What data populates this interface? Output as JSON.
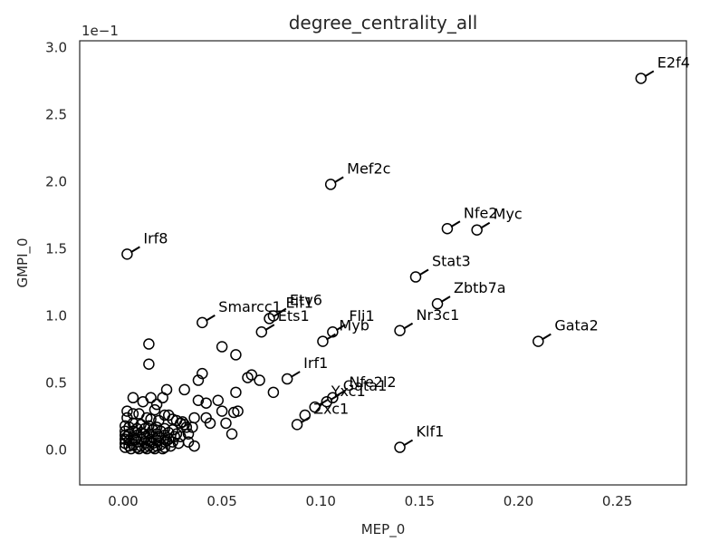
{
  "chart_data": {
    "type": "scatter",
    "title": "degree_centrality_all",
    "xlabel": "MEP_0",
    "ylabel": "GMPI_0",
    "y_multiplier": "1e−1",
    "xlim": [
      -0.022,
      0.285
    ],
    "ylim": [
      -0.26,
      3.05
    ],
    "xticks": [
      0.0,
      0.05,
      0.1,
      0.15,
      0.2,
      0.25
    ],
    "xtick_labels": [
      "0.00",
      "0.05",
      "0.10",
      "0.15",
      "0.20",
      "0.25"
    ],
    "yticks": [
      0.0,
      0.5,
      1.0,
      1.5,
      2.0,
      2.5,
      3.0
    ],
    "ytick_labels": [
      "0.0",
      "0.5",
      "1.0",
      "1.5",
      "2.0",
      "2.5",
      "3.0"
    ],
    "grid": false,
    "labeled_points": [
      {
        "label": "E2f4",
        "x": 0.262,
        "y": 2.77
      },
      {
        "label": "Mef2c",
        "x": 0.105,
        "y": 1.98
      },
      {
        "label": "Nfe2",
        "x": 0.164,
        "y": 1.65
      },
      {
        "label": "Myc",
        "x": 0.179,
        "y": 1.64
      },
      {
        "label": "Irf8",
        "x": 0.002,
        "y": 1.46
      },
      {
        "label": "Stat3",
        "x": 0.148,
        "y": 1.29
      },
      {
        "label": "Zbtb7a",
        "x": 0.159,
        "y": 1.09
      },
      {
        "label": "Smarcc1",
        "x": 0.04,
        "y": 0.95
      },
      {
        "label": "Etv6",
        "x": 0.076,
        "y": 1.0
      },
      {
        "label": "Elf1",
        "x": 0.074,
        "y": 0.98
      },
      {
        "label": "Ets1",
        "x": 0.07,
        "y": 0.88
      },
      {
        "label": "Fli1",
        "x": 0.106,
        "y": 0.88
      },
      {
        "label": "Myb",
        "x": 0.101,
        "y": 0.81
      },
      {
        "label": "Nr3c1",
        "x": 0.14,
        "y": 0.89
      },
      {
        "label": "Gata2",
        "x": 0.21,
        "y": 0.81
      },
      {
        "label": "Irf1",
        "x": 0.083,
        "y": 0.53
      },
      {
        "label": "Nfe2l2",
        "x": 0.106,
        "y": 0.39
      },
      {
        "label": "Gata1",
        "x": 0.103,
        "y": 0.36
      },
      {
        "label": "Yxc1",
        "x": 0.097,
        "y": 0.32
      },
      {
        "label": "Zxc1",
        "x": 0.088,
        "y": 0.19
      },
      {
        "label": "Klf1",
        "x": 0.14,
        "y": 0.02
      }
    ],
    "points": [
      [
        0.092,
        0.26
      ],
      [
        0.013,
        0.79
      ],
      [
        0.013,
        0.64
      ],
      [
        0.05,
        0.77
      ],
      [
        0.057,
        0.71
      ],
      [
        0.04,
        0.57
      ],
      [
        0.038,
        0.52
      ],
      [
        0.063,
        0.54
      ],
      [
        0.065,
        0.56
      ],
      [
        0.069,
        0.52
      ],
      [
        0.076,
        0.43
      ],
      [
        0.057,
        0.43
      ],
      [
        0.031,
        0.45
      ],
      [
        0.022,
        0.45
      ],
      [
        0.038,
        0.37
      ],
      [
        0.042,
        0.35
      ],
      [
        0.048,
        0.37
      ],
      [
        0.05,
        0.29
      ],
      [
        0.056,
        0.28
      ],
      [
        0.058,
        0.29
      ],
      [
        0.036,
        0.24
      ],
      [
        0.042,
        0.24
      ],
      [
        0.044,
        0.2
      ],
      [
        0.052,
        0.2
      ],
      [
        0.055,
        0.12
      ],
      [
        0.035,
        0.17
      ],
      [
        0.03,
        0.21
      ],
      [
        0.032,
        0.17
      ],
      [
        0.005,
        0.39
      ],
      [
        0.01,
        0.36
      ],
      [
        0.014,
        0.39
      ],
      [
        0.017,
        0.34
      ],
      [
        0.02,
        0.39
      ],
      [
        0.016,
        0.3
      ],
      [
        0.002,
        0.29
      ],
      [
        0.002,
        0.24
      ],
      [
        0.005,
        0.27
      ],
      [
        0.008,
        0.27
      ],
      [
        0.012,
        0.24
      ],
      [
        0.014,
        0.23
      ],
      [
        0.018,
        0.22
      ],
      [
        0.021,
        0.26
      ],
      [
        0.023,
        0.26
      ],
      [
        0.025,
        0.23
      ],
      [
        0.027,
        0.22
      ],
      [
        0.029,
        0.2
      ],
      [
        0.031,
        0.19
      ],
      [
        0.033,
        0.06
      ],
      [
        0.036,
        0.03
      ],
      [
        0.033,
        0.12
      ],
      [
        0.029,
        0.1
      ],
      [
        0.026,
        0.1
      ],
      [
        0.022,
        0.07
      ],
      [
        0.024,
        0.03
      ],
      [
        0.028,
        0.05
      ],
      [
        0.001,
        0.18
      ],
      [
        0.001,
        0.14
      ],
      [
        0.001,
        0.11
      ],
      [
        0.001,
        0.08
      ],
      [
        0.001,
        0.05
      ],
      [
        0.001,
        0.02
      ],
      [
        0.003,
        0.17
      ],
      [
        0.003,
        0.12
      ],
      [
        0.003,
        0.07
      ],
      [
        0.003,
        0.03
      ],
      [
        0.005,
        0.2
      ],
      [
        0.005,
        0.14
      ],
      [
        0.005,
        0.09
      ],
      [
        0.005,
        0.04
      ],
      [
        0.007,
        0.16
      ],
      [
        0.007,
        0.11
      ],
      [
        0.007,
        0.06
      ],
      [
        0.007,
        0.02
      ],
      [
        0.009,
        0.19
      ],
      [
        0.009,
        0.13
      ],
      [
        0.009,
        0.08
      ],
      [
        0.009,
        0.03
      ],
      [
        0.011,
        0.16
      ],
      [
        0.011,
        0.1
      ],
      [
        0.011,
        0.05
      ],
      [
        0.011,
        0.02
      ],
      [
        0.013,
        0.18
      ],
      [
        0.013,
        0.12
      ],
      [
        0.013,
        0.07
      ],
      [
        0.013,
        0.03
      ],
      [
        0.015,
        0.15
      ],
      [
        0.015,
        0.1
      ],
      [
        0.015,
        0.05
      ],
      [
        0.015,
        0.02
      ],
      [
        0.017,
        0.17
      ],
      [
        0.017,
        0.12
      ],
      [
        0.017,
        0.07
      ],
      [
        0.017,
        0.03
      ],
      [
        0.019,
        0.14
      ],
      [
        0.019,
        0.09
      ],
      [
        0.019,
        0.04
      ],
      [
        0.021,
        0.16
      ],
      [
        0.021,
        0.11
      ],
      [
        0.021,
        0.06
      ],
      [
        0.021,
        0.02
      ],
      [
        0.023,
        0.13
      ],
      [
        0.023,
        0.08
      ],
      [
        0.025,
        0.15
      ],
      [
        0.025,
        0.06
      ],
      [
        0.027,
        0.12
      ],
      [
        0.004,
        0.01
      ],
      [
        0.008,
        0.01
      ],
      [
        0.012,
        0.01
      ],
      [
        0.016,
        0.01
      ],
      [
        0.02,
        0.01
      ],
      [
        0.002,
        0.1
      ],
      [
        0.006,
        0.08
      ],
      [
        0.01,
        0.12
      ],
      [
        0.014,
        0.06
      ],
      [
        0.018,
        0.1
      ]
    ]
  }
}
